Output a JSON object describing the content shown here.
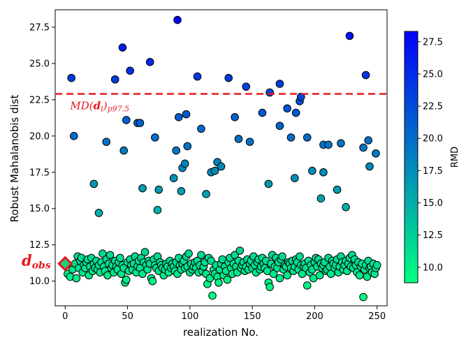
{
  "chart_data": {
    "type": "scatter",
    "xlabel": "realization No.",
    "ylabel": "Robust Mahalanobis dist",
    "xlim": [
      -8,
      258
    ],
    "ylim": [
      8.3,
      28.7
    ],
    "x_ticks": [
      0,
      50,
      100,
      150,
      200,
      250
    ],
    "x_tick_labels": [
      "0",
      "50",
      "100",
      "150",
      "200",
      "250"
    ],
    "y_ticks": [
      10.0,
      12.5,
      15.0,
      17.5,
      20.0,
      22.5,
      25.0,
      27.5
    ],
    "y_tick_labels": [
      "10.0",
      "12.5",
      "15.0",
      "17.5",
      "20.0",
      "22.5",
      "25.0",
      "27.5"
    ],
    "grid": false,
    "colorbar": {
      "label": "RMD",
      "range": [
        8.8,
        28.3
      ],
      "ticks": [
        10.0,
        12.5,
        15.0,
        17.5,
        20.0,
        22.5,
        25.0,
        27.5
      ],
      "tick_labels": [
        "10.0",
        "12.5",
        "15.0",
        "17.5",
        "20.0",
        "22.5",
        "25.0",
        "27.5"
      ],
      "color_low": "#00ff80",
      "color_high": "#0000ff"
    },
    "threshold": {
      "y": 22.9,
      "color": "#e8181d",
      "label_main": "MD(",
      "label_bold": "d",
      "label_sub_i": "i",
      "label_close": ")",
      "label_subscript": "p97.5"
    },
    "observed": {
      "x": 0,
      "y": 11.2,
      "label_main": "d",
      "label_sub": "obs",
      "color": "#e8181d",
      "fill": "#1bd27a"
    },
    "outliers": [
      {
        "x": 5,
        "y": 24.0
      },
      {
        "x": 7,
        "y": 20.0
      },
      {
        "x": 23,
        "y": 16.7
      },
      {
        "x": 27,
        "y": 14.7
      },
      {
        "x": 33,
        "y": 19.6
      },
      {
        "x": 40,
        "y": 23.9
      },
      {
        "x": 46,
        "y": 26.1
      },
      {
        "x": 47,
        "y": 19.0
      },
      {
        "x": 49,
        "y": 21.1
      },
      {
        "x": 52,
        "y": 24.5
      },
      {
        "x": 58,
        "y": 20.9
      },
      {
        "x": 60,
        "y": 20.9
      },
      {
        "x": 62,
        "y": 16.4
      },
      {
        "x": 68,
        "y": 25.1
      },
      {
        "x": 72,
        "y": 19.9
      },
      {
        "x": 74,
        "y": 14.9
      },
      {
        "x": 75,
        "y": 16.3
      },
      {
        "x": 87,
        "y": 17.1
      },
      {
        "x": 89,
        "y": 19.0
      },
      {
        "x": 90,
        "y": 28.0
      },
      {
        "x": 91,
        "y": 21.3
      },
      {
        "x": 93,
        "y": 16.2
      },
      {
        "x": 94,
        "y": 17.8
      },
      {
        "x": 96,
        "y": 18.1
      },
      {
        "x": 97,
        "y": 21.5
      },
      {
        "x": 98,
        "y": 19.3
      },
      {
        "x": 106,
        "y": 24.1
      },
      {
        "x": 109,
        "y": 20.5
      },
      {
        "x": 113,
        "y": 16.0
      },
      {
        "x": 117,
        "y": 17.5
      },
      {
        "x": 120,
        "y": 17.6
      },
      {
        "x": 122,
        "y": 18.2
      },
      {
        "x": 125,
        "y": 17.9
      },
      {
        "x": 131,
        "y": 24.0
      },
      {
        "x": 136,
        "y": 21.3
      },
      {
        "x": 139,
        "y": 19.8
      },
      {
        "x": 145,
        "y": 23.4
      },
      {
        "x": 148,
        "y": 19.6
      },
      {
        "x": 158,
        "y": 21.6
      },
      {
        "x": 163,
        "y": 16.7
      },
      {
        "x": 164,
        "y": 23.0
      },
      {
        "x": 172,
        "y": 20.7
      },
      {
        "x": 172,
        "y": 23.6
      },
      {
        "x": 178,
        "y": 21.9
      },
      {
        "x": 181,
        "y": 19.9
      },
      {
        "x": 184,
        "y": 17.1
      },
      {
        "x": 185,
        "y": 21.6
      },
      {
        "x": 188,
        "y": 22.4
      },
      {
        "x": 189,
        "y": 22.7
      },
      {
        "x": 194,
        "y": 19.9
      },
      {
        "x": 198,
        "y": 17.6
      },
      {
        "x": 205,
        "y": 15.7
      },
      {
        "x": 207,
        "y": 19.4
      },
      {
        "x": 207,
        "y": 17.5
      },
      {
        "x": 211,
        "y": 19.4
      },
      {
        "x": 218,
        "y": 16.3
      },
      {
        "x": 221,
        "y": 19.5
      },
      {
        "x": 225,
        "y": 15.1
      },
      {
        "x": 228,
        "y": 26.9
      },
      {
        "x": 239,
        "y": 19.2
      },
      {
        "x": 241,
        "y": 24.2
      },
      {
        "x": 243,
        "y": 19.7
      },
      {
        "x": 244,
        "y": 17.9
      },
      {
        "x": 249,
        "y": 18.8
      }
    ],
    "cluster_note": "dense cluster of about 250 realizations between y 8.8 and 12.1 (below)",
    "cluster": {
      "x": [
        2,
        4,
        6,
        8,
        9,
        10,
        11,
        12,
        13,
        14,
        15,
        16,
        17,
        18,
        19,
        20,
        21,
        22,
        23,
        24,
        25,
        26,
        27,
        28,
        29,
        30,
        31,
        32,
        33,
        34,
        35,
        36,
        37,
        38,
        39,
        40,
        41,
        42,
        43,
        44,
        45,
        46,
        47,
        48,
        49,
        50,
        51,
        52,
        53,
        54,
        55,
        56,
        57,
        58,
        59,
        60,
        61,
        62,
        63,
        64,
        65,
        66,
        67,
        68,
        69,
        70,
        71,
        72,
        73,
        74,
        75,
        76,
        77,
        78,
        79,
        80,
        81,
        82,
        83,
        84,
        85,
        86,
        87,
        88,
        89,
        90,
        91,
        92,
        93,
        94,
        95,
        96,
        97,
        98,
        99,
        100,
        101,
        102,
        103,
        104,
        105,
        106,
        107,
        108,
        109,
        110,
        111,
        112,
        113,
        114,
        115,
        116,
        117,
        118,
        119,
        120,
        121,
        122,
        123,
        124,
        125,
        126,
        127,
        128,
        129,
        130,
        131,
        132,
        133,
        134,
        135,
        136,
        137,
        138,
        139,
        140,
        141,
        142,
        143,
        144,
        145,
        146,
        147,
        148,
        149,
        150,
        151,
        152,
        153,
        154,
        155,
        156,
        157,
        158,
        159,
        160,
        161,
        162,
        163,
        164,
        165,
        166,
        167,
        168,
        169,
        170,
        171,
        172,
        173,
        174,
        175,
        176,
        177,
        178,
        179,
        180,
        181,
        182,
        183,
        184,
        185,
        186,
        187,
        188,
        189,
        190,
        191,
        192,
        193,
        194,
        195,
        196,
        197,
        198,
        199,
        200,
        201,
        202,
        203,
        204,
        205,
        206,
        207,
        208,
        209,
        210,
        211,
        212,
        213,
        214,
        215,
        216,
        217,
        218,
        219,
        220,
        221,
        222,
        223,
        224,
        225,
        226,
        227,
        228,
        229,
        230,
        231,
        232,
        233,
        234,
        235,
        236,
        237,
        238,
        239,
        240,
        241,
        242,
        243,
        244,
        245,
        246,
        247,
        248,
        249,
        250
      ],
      "y": [
        10.5,
        10.3,
        10.8,
        11.2,
        10.2,
        11.7,
        10.9,
        11.4,
        11.6,
        10.6,
        11.1,
        10.9,
        11.3,
        11.5,
        10.4,
        11.0,
        11.6,
        10.7,
        11.2,
        10.9,
        11.4,
        10.8,
        11.1,
        10.6,
        11.3,
        11.9,
        11.0,
        10.7,
        11.5,
        10.4,
        11.2,
        11.8,
        10.9,
        11.1,
        10.6,
        11.4,
        11.0,
        10.8,
        11.3,
        11.6,
        10.5,
        11.1,
        10.9,
        9.9,
        10.1,
        11.3,
        10.7,
        11.5,
        11.1,
        10.8,
        11.2,
        11.7,
        10.6,
        11.0,
        11.4,
        10.9,
        11.6,
        10.5,
        11.3,
        12.0,
        11.1,
        10.8,
        11.4,
        11.2,
        10.2,
        10.0,
        11.5,
        11.1,
        10.9,
        11.7,
        10.7,
        11.3,
        11.1,
        10.9,
        10.4,
        10.8,
        11.2,
        11.0,
        10.6,
        11.4,
        10.9,
        11.2,
        11.0,
        10.7,
        11.3,
        10.5,
        11.6,
        11.1,
        10.8,
        11.2,
        11.4,
        10.9,
        11.7,
        11.0,
        11.9,
        10.6,
        11.2,
        10.8,
        11.0,
        11.3,
        10.9,
        11.4,
        10.6,
        11.1,
        11.8,
        10.7,
        11.0,
        11.3,
        10.5,
        9.8,
        11.6,
        10.2,
        11.4,
        9.0,
        10.8,
        10.5,
        11.1,
        10.3,
        9.9,
        10.8,
        11.2,
        11.5,
        10.4,
        11.0,
        10.7,
        10.1,
        11.3,
        11.6,
        10.9,
        10.5,
        11.2,
        11.8,
        11.0,
        10.6,
        11.4,
        12.1,
        10.9,
        11.1,
        11.3,
        10.7,
        11.0,
        11.5,
        10.8,
        11.2,
        11.4,
        10.9,
        11.7,
        11.1,
        10.6,
        11.3,
        11.5,
        10.8,
        11.0,
        11.6,
        11.2,
        10.9,
        11.4,
        10.7,
        9.9,
        9.6,
        11.2,
        11.8,
        10.5,
        11.0,
        11.6,
        10.9,
        11.3,
        10.2,
        11.5,
        11.7,
        10.8,
        11.1,
        11.0,
        10.4,
        11.3,
        11.2,
        10.9,
        11.4,
        10.7,
        11.0,
        11.5,
        11.3,
        10.8,
        11.7,
        11.1,
        10.5,
        11.0,
        11.2,
        10.9,
        9.7,
        11.4,
        10.6,
        11.1,
        10.8,
        10.2,
        11.3,
        11.6,
        11.0,
        11.5,
        10.4,
        11.2,
        10.9,
        11.1,
        11.3,
        10.7,
        10.8,
        11.6,
        11.0,
        10.5,
        11.4,
        11.2,
        10.9,
        11.1,
        11.5,
        10.6,
        11.0,
        11.7,
        11.3,
        10.8,
        11.1,
        11.4,
        10.7,
        11.2,
        11.6,
        11.0,
        11.8,
        10.9,
        11.5,
        11.1,
        10.6,
        11.3,
        10.4,
        11.0,
        11.2,
        8.9,
        10.8,
        11.1,
        10.3,
        11.4,
        10.9,
        11.0,
        10.6,
        11.2,
        10.5,
        10.9,
        11.1
      ],
      "note": "values estimated from image"
    }
  }
}
